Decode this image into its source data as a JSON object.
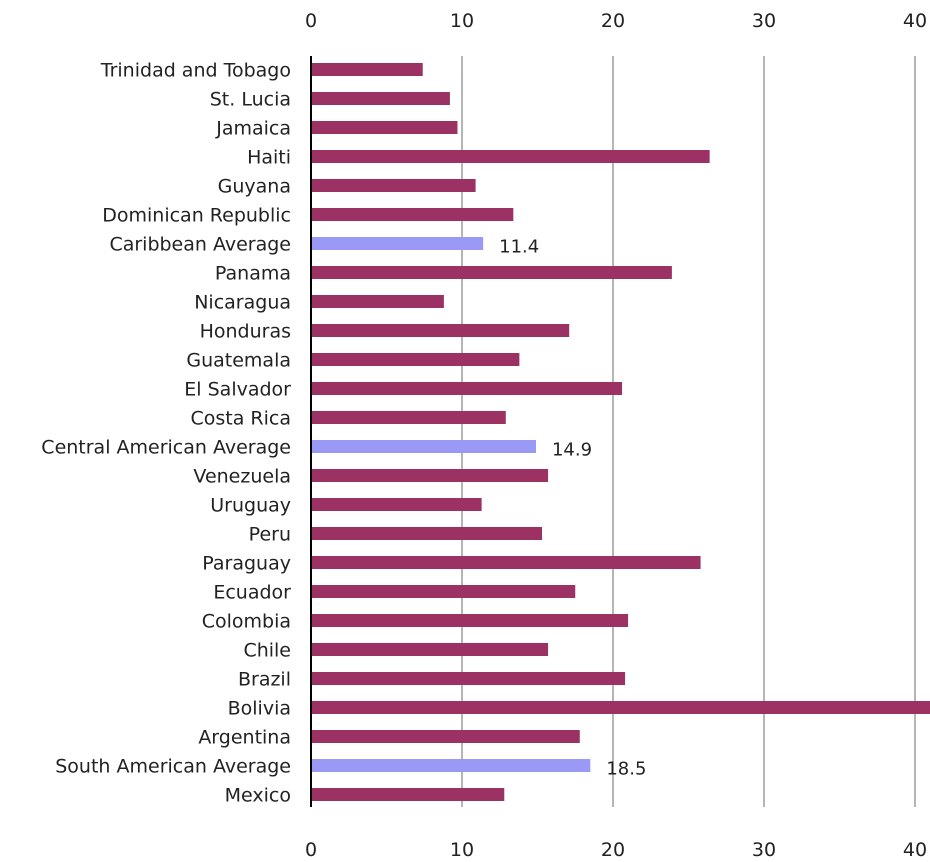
{
  "colors": {
    "country_bar": "#9b3263",
    "average_bar": "#9a9af6",
    "gridline": "#b5b5b5",
    "axis": "#000000",
    "text": "#222222"
  },
  "chart_data": {
    "type": "bar",
    "orientation": "horizontal",
    "title": "",
    "xlabel": "",
    "ylabel": "",
    "xlim": [
      0,
      40
    ],
    "x_ticks": [
      0,
      10,
      20,
      30,
      40
    ],
    "tick_label_positions": [
      "top",
      "bottom"
    ],
    "grid": "vertical",
    "legend": "none",
    "categories": [
      "Trinidad and Tobago",
      "St. Lucia",
      "Jamaica",
      "Haiti",
      "Guyana",
      "Dominican Republic",
      "Caribbean Average",
      "Panama",
      "Nicaragua",
      "Honduras",
      "Guatemala",
      "El Salvador",
      "Costa Rica",
      "Central American Average",
      "Venezuela",
      "Uruguay",
      "Peru",
      "Paraguay",
      "Ecuador",
      "Colombia",
      "Chile",
      "Brazil",
      "Bolivia",
      "Argentina",
      "South American Average",
      "Mexico"
    ],
    "values": [
      7.4,
      9.2,
      9.7,
      26.4,
      10.9,
      13.4,
      11.4,
      23.9,
      8.8,
      17.1,
      13.8,
      20.6,
      12.9,
      14.9,
      15.7,
      11.3,
      15.3,
      25.8,
      17.5,
      21.0,
      15.7,
      20.8,
      41.0,
      17.8,
      18.5,
      12.8
    ],
    "is_average": [
      false,
      false,
      false,
      false,
      false,
      false,
      true,
      false,
      false,
      false,
      false,
      false,
      false,
      true,
      false,
      false,
      false,
      false,
      false,
      false,
      false,
      false,
      false,
      false,
      true,
      false
    ],
    "data_labels": [
      "",
      "",
      "",
      "",
      "",
      "",
      "11.4",
      "",
      "",
      "",
      "",
      "",
      "",
      "14.9",
      "",
      "",
      "",
      "",
      "",
      "",
      "",
      "",
      "",
      "",
      "18.5",
      ""
    ]
  }
}
